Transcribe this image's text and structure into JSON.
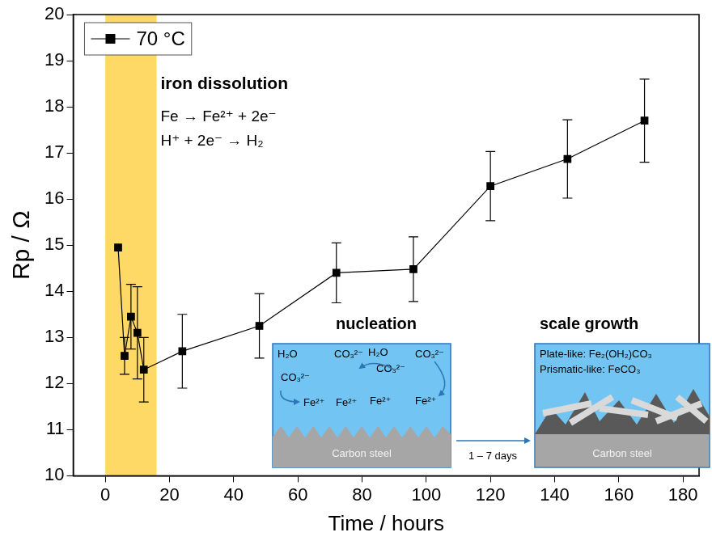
{
  "chart_data": {
    "type": "line",
    "x_label": "Time / hours",
    "y_label": "Rp / Ω",
    "x": [
      4,
      6,
      8,
      10,
      12,
      24,
      48,
      72,
      96,
      120,
      144,
      168
    ],
    "series": [
      {
        "name": "70 °C",
        "color": "#000000",
        "marker": "square",
        "line_style": "solid",
        "values": [
          14.95,
          12.6,
          13.45,
          13.1,
          12.3,
          12.7,
          13.25,
          14.4,
          14.48,
          16.28,
          16.87,
          17.7
        ],
        "errors": [
          null,
          0.4,
          0.7,
          1.0,
          0.7,
          0.8,
          0.7,
          0.65,
          0.7,
          0.75,
          0.85,
          0.9
        ]
      }
    ],
    "xlim": [
      -10,
      185
    ],
    "xticks": [
      0,
      20,
      40,
      60,
      80,
      100,
      120,
      140,
      160,
      180
    ],
    "ylim": [
      10,
      20
    ],
    "yticks": [
      10,
      11,
      12,
      13,
      14,
      15,
      16,
      17,
      18,
      19,
      20
    ],
    "grid": false,
    "legend": "upper left",
    "shaded_region": {
      "xlim": [
        0,
        16
      ],
      "color": "#ffd966"
    },
    "annotations": [
      "iron dissolution",
      "Fe → Fe²⁺ + 2e⁻",
      "H⁺ + 2e⁻ → H₂"
    ],
    "insets": [
      {
        "title": "nucleation",
        "species": [
          "H₂O",
          "H₂O",
          "CO₃²⁻",
          "CO₃²⁻",
          "CO₃²⁻",
          "CO₃²⁻",
          "Fe²⁺",
          "Fe²⁺",
          "Fe²⁺",
          "Fe²⁺"
        ],
        "substrate": "Carbon steel"
      },
      {
        "title": "scale growth",
        "species": [
          "Plate-like: Fe₂(OH₂)CO₃",
          "Prismatic-like: FeCO₃"
        ],
        "substrate": "Carbon steel"
      }
    ],
    "transition": "1 – 7 days"
  }
}
